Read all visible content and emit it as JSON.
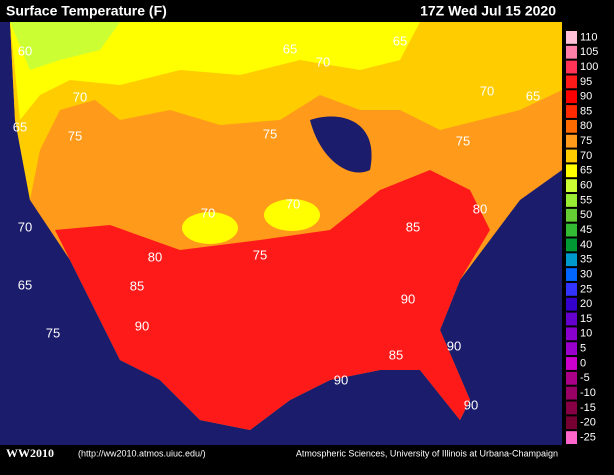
{
  "header": {
    "title": "Surface Temperature (F)",
    "time": "17Z Wed Jul 15 2020"
  },
  "legend": [
    {
      "label": "110",
      "color": "#ffc0d8"
    },
    {
      "label": "105",
      "color": "#ff7fa8"
    },
    {
      "label": "100",
      "color": "#ff3355"
    },
    {
      "label": "95",
      "color": "#ff1a1a"
    },
    {
      "label": "90",
      "color": "#ff0000"
    },
    {
      "label": "85",
      "color": "#ff2a00"
    },
    {
      "label": "80",
      "color": "#ff6a00"
    },
    {
      "label": "75",
      "color": "#ff9a1a"
    },
    {
      "label": "70",
      "color": "#ffcc00"
    },
    {
      "label": "65",
      "color": "#ffff00"
    },
    {
      "label": "60",
      "color": "#ccff33"
    },
    {
      "label": "55",
      "color": "#99ee33"
    },
    {
      "label": "50",
      "color": "#66cc33"
    },
    {
      "label": "45",
      "color": "#33bb33"
    },
    {
      "label": "40",
      "color": "#009933"
    },
    {
      "label": "35",
      "color": "#0099cc"
    },
    {
      "label": "30",
      "color": "#0066ff"
    },
    {
      "label": "25",
      "color": "#3333ff"
    },
    {
      "label": "20",
      "color": "#3300cc"
    },
    {
      "label": "15",
      "color": "#6600cc"
    },
    {
      "label": "10",
      "color": "#8800cc"
    },
    {
      "label": "5",
      "color": "#9900cc"
    },
    {
      "label": "0",
      "color": "#cc00cc"
    },
    {
      "label": "-5",
      "color": "#aa0088"
    },
    {
      "label": "-10",
      "color": "#990066"
    },
    {
      "label": "-15",
      "color": "#880044"
    },
    {
      "label": "-20",
      "color": "#770033"
    },
    {
      "label": "-25",
      "color": "#ff66cc"
    }
  ],
  "contour_labels": [
    "60",
    "65",
    "65",
    "70",
    "70",
    "65",
    "75",
    "70",
    "65",
    "75",
    "75",
    "70",
    "70",
    "80",
    "85",
    "70",
    "80",
    "75",
    "65",
    "85",
    "90",
    "90",
    "75",
    "85",
    "90",
    "90",
    "90"
  ],
  "footer": {
    "brand": "WW2010",
    "url": "(http://ww2010.atmos.uiuc.edu/)",
    "credit": "Atmospheric Sciences, University of Illinois at Urbana-Champaign"
  }
}
